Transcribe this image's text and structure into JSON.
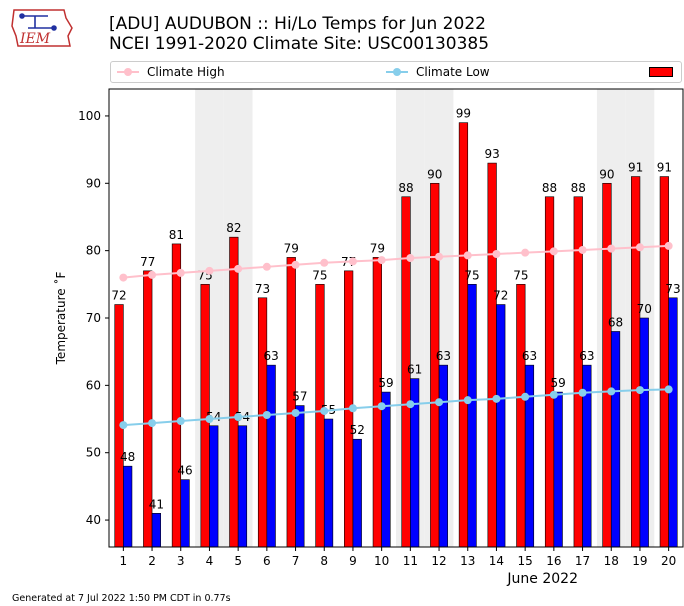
{
  "header": {
    "logo_text": "IEM",
    "title_line1": "[ADU] AUDUBON :: Hi/Lo Temps for Jun 2022",
    "title_line2": "NCEI 1991-2020 Climate Site: USC00130385"
  },
  "legend": {
    "climate_high": "Climate High",
    "climate_low": "Climate Low"
  },
  "footer": {
    "generated": "Generated at 7 Jul 2022 1:50 PM CDT in 0.77s"
  },
  "colors": {
    "high_bar": "#ff0000",
    "low_bar": "#0000ff",
    "climate_high": "#ffc0cb",
    "climate_low": "#87ceeb",
    "weekend_band": "#eeeeee"
  },
  "chart_data": {
    "type": "bar",
    "title": "[ADU] AUDUBON :: Hi/Lo Temps for Jun 2022",
    "xlabel": "June 2022",
    "ylabel": "Temperature ˚F",
    "ylim": [
      36,
      104
    ],
    "yticks": [
      40,
      50,
      60,
      70,
      80,
      90,
      100
    ],
    "categories": [
      "1",
      "2",
      "3",
      "4",
      "5",
      "6",
      "7",
      "8",
      "9",
      "10",
      "11",
      "12",
      "13",
      "14",
      "15",
      "16",
      "17",
      "18",
      "19",
      "20"
    ],
    "shaded_days": [
      "4",
      "5",
      "11",
      "12",
      "18",
      "19"
    ],
    "series": [
      {
        "name": "High",
        "values": [
          72,
          77,
          81,
          75,
          82,
          73,
          79,
          75,
          77,
          79,
          88,
          90,
          99,
          93,
          75,
          88,
          88,
          90,
          91,
          91
        ]
      },
      {
        "name": "Low",
        "values": [
          48,
          41,
          46,
          54,
          54,
          63,
          57,
          55,
          52,
          59,
          61,
          63,
          75,
          72,
          63,
          59,
          63,
          68,
          70,
          73
        ]
      },
      {
        "name": "Climate High",
        "values": [
          76.0,
          76.4,
          76.7,
          77.0,
          77.3,
          77.6,
          77.9,
          78.2,
          78.4,
          78.6,
          78.9,
          79.1,
          79.3,
          79.5,
          79.7,
          79.9,
          80.1,
          80.3,
          80.5,
          80.7
        ]
      },
      {
        "name": "Climate Low",
        "values": [
          54.1,
          54.4,
          54.7,
          55.0,
          55.3,
          55.6,
          55.9,
          56.2,
          56.6,
          56.9,
          57.2,
          57.5,
          57.8,
          58.0,
          58.3,
          58.6,
          58.9,
          59.1,
          59.3,
          59.4
        ]
      }
    ]
  }
}
